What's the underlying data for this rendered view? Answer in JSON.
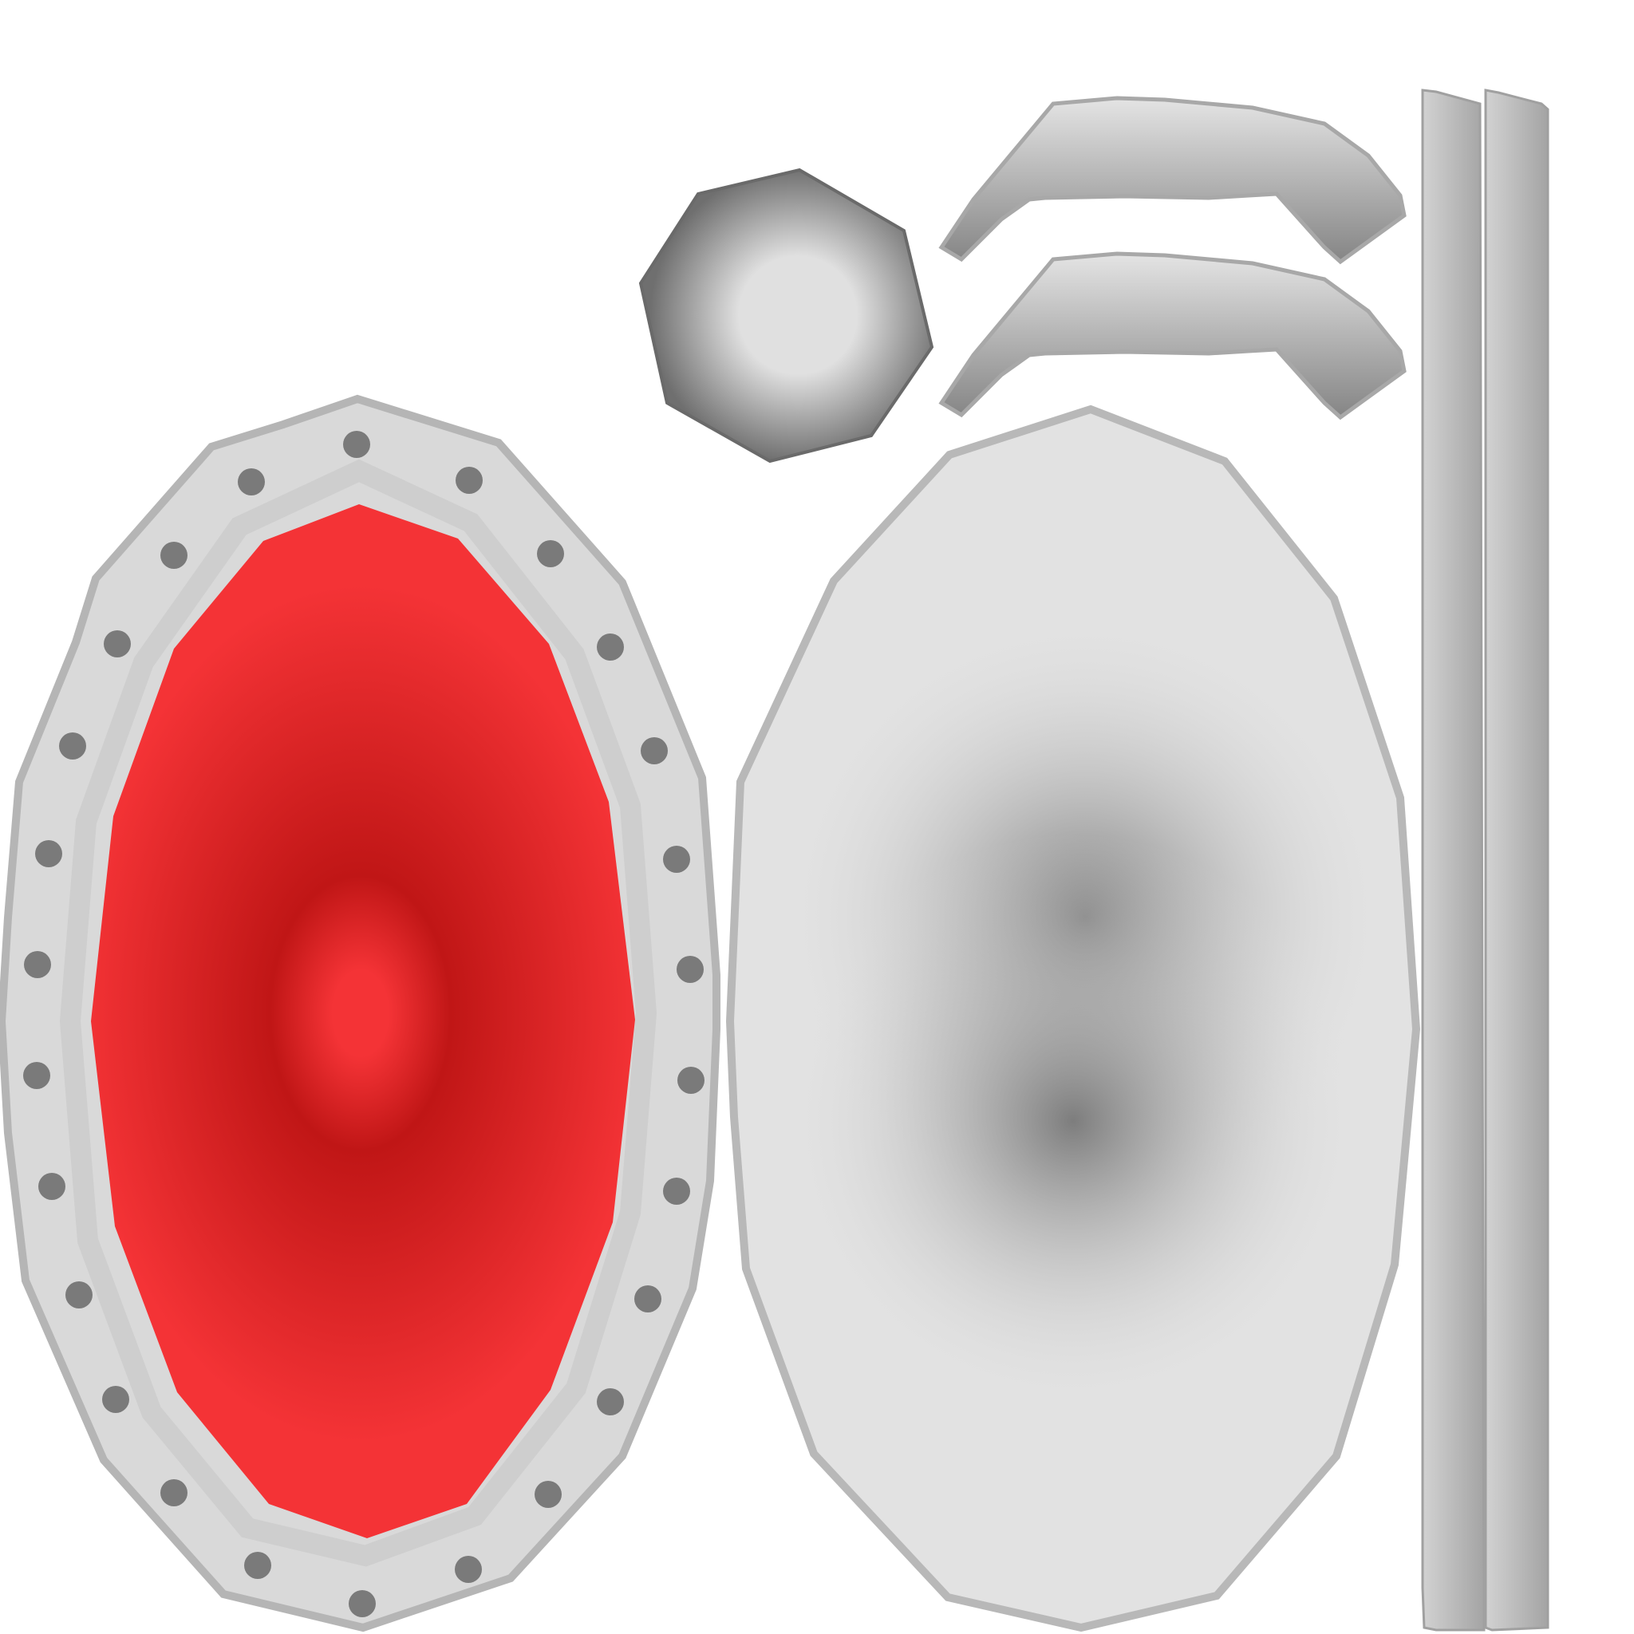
{
  "colors": {
    "background": "#ffffff",
    "shield_face_center": "#c01616",
    "shield_face_edge": "#f43336",
    "rim_light": "#e6e6e6",
    "rim_mid": "#c4c4c4",
    "rim_dark": "#9e9e9e",
    "rivet": "#7a7a7a",
    "back_light": "#e2e2e2",
    "back_dark": "#7d7d7d",
    "boss_outer": "#6f6f6f",
    "boss_inner": "#e0e0e0",
    "strap_light": "#e4e4e4",
    "strap_dark": "#858585",
    "bar_light": "#d2d2d2",
    "bar_dark": "#a4a4a4"
  },
  "parts": [
    "shield-front",
    "shield-back",
    "shield-boss",
    "handle-strap",
    "handle-strap",
    "edge-bar",
    "edge-bar"
  ]
}
